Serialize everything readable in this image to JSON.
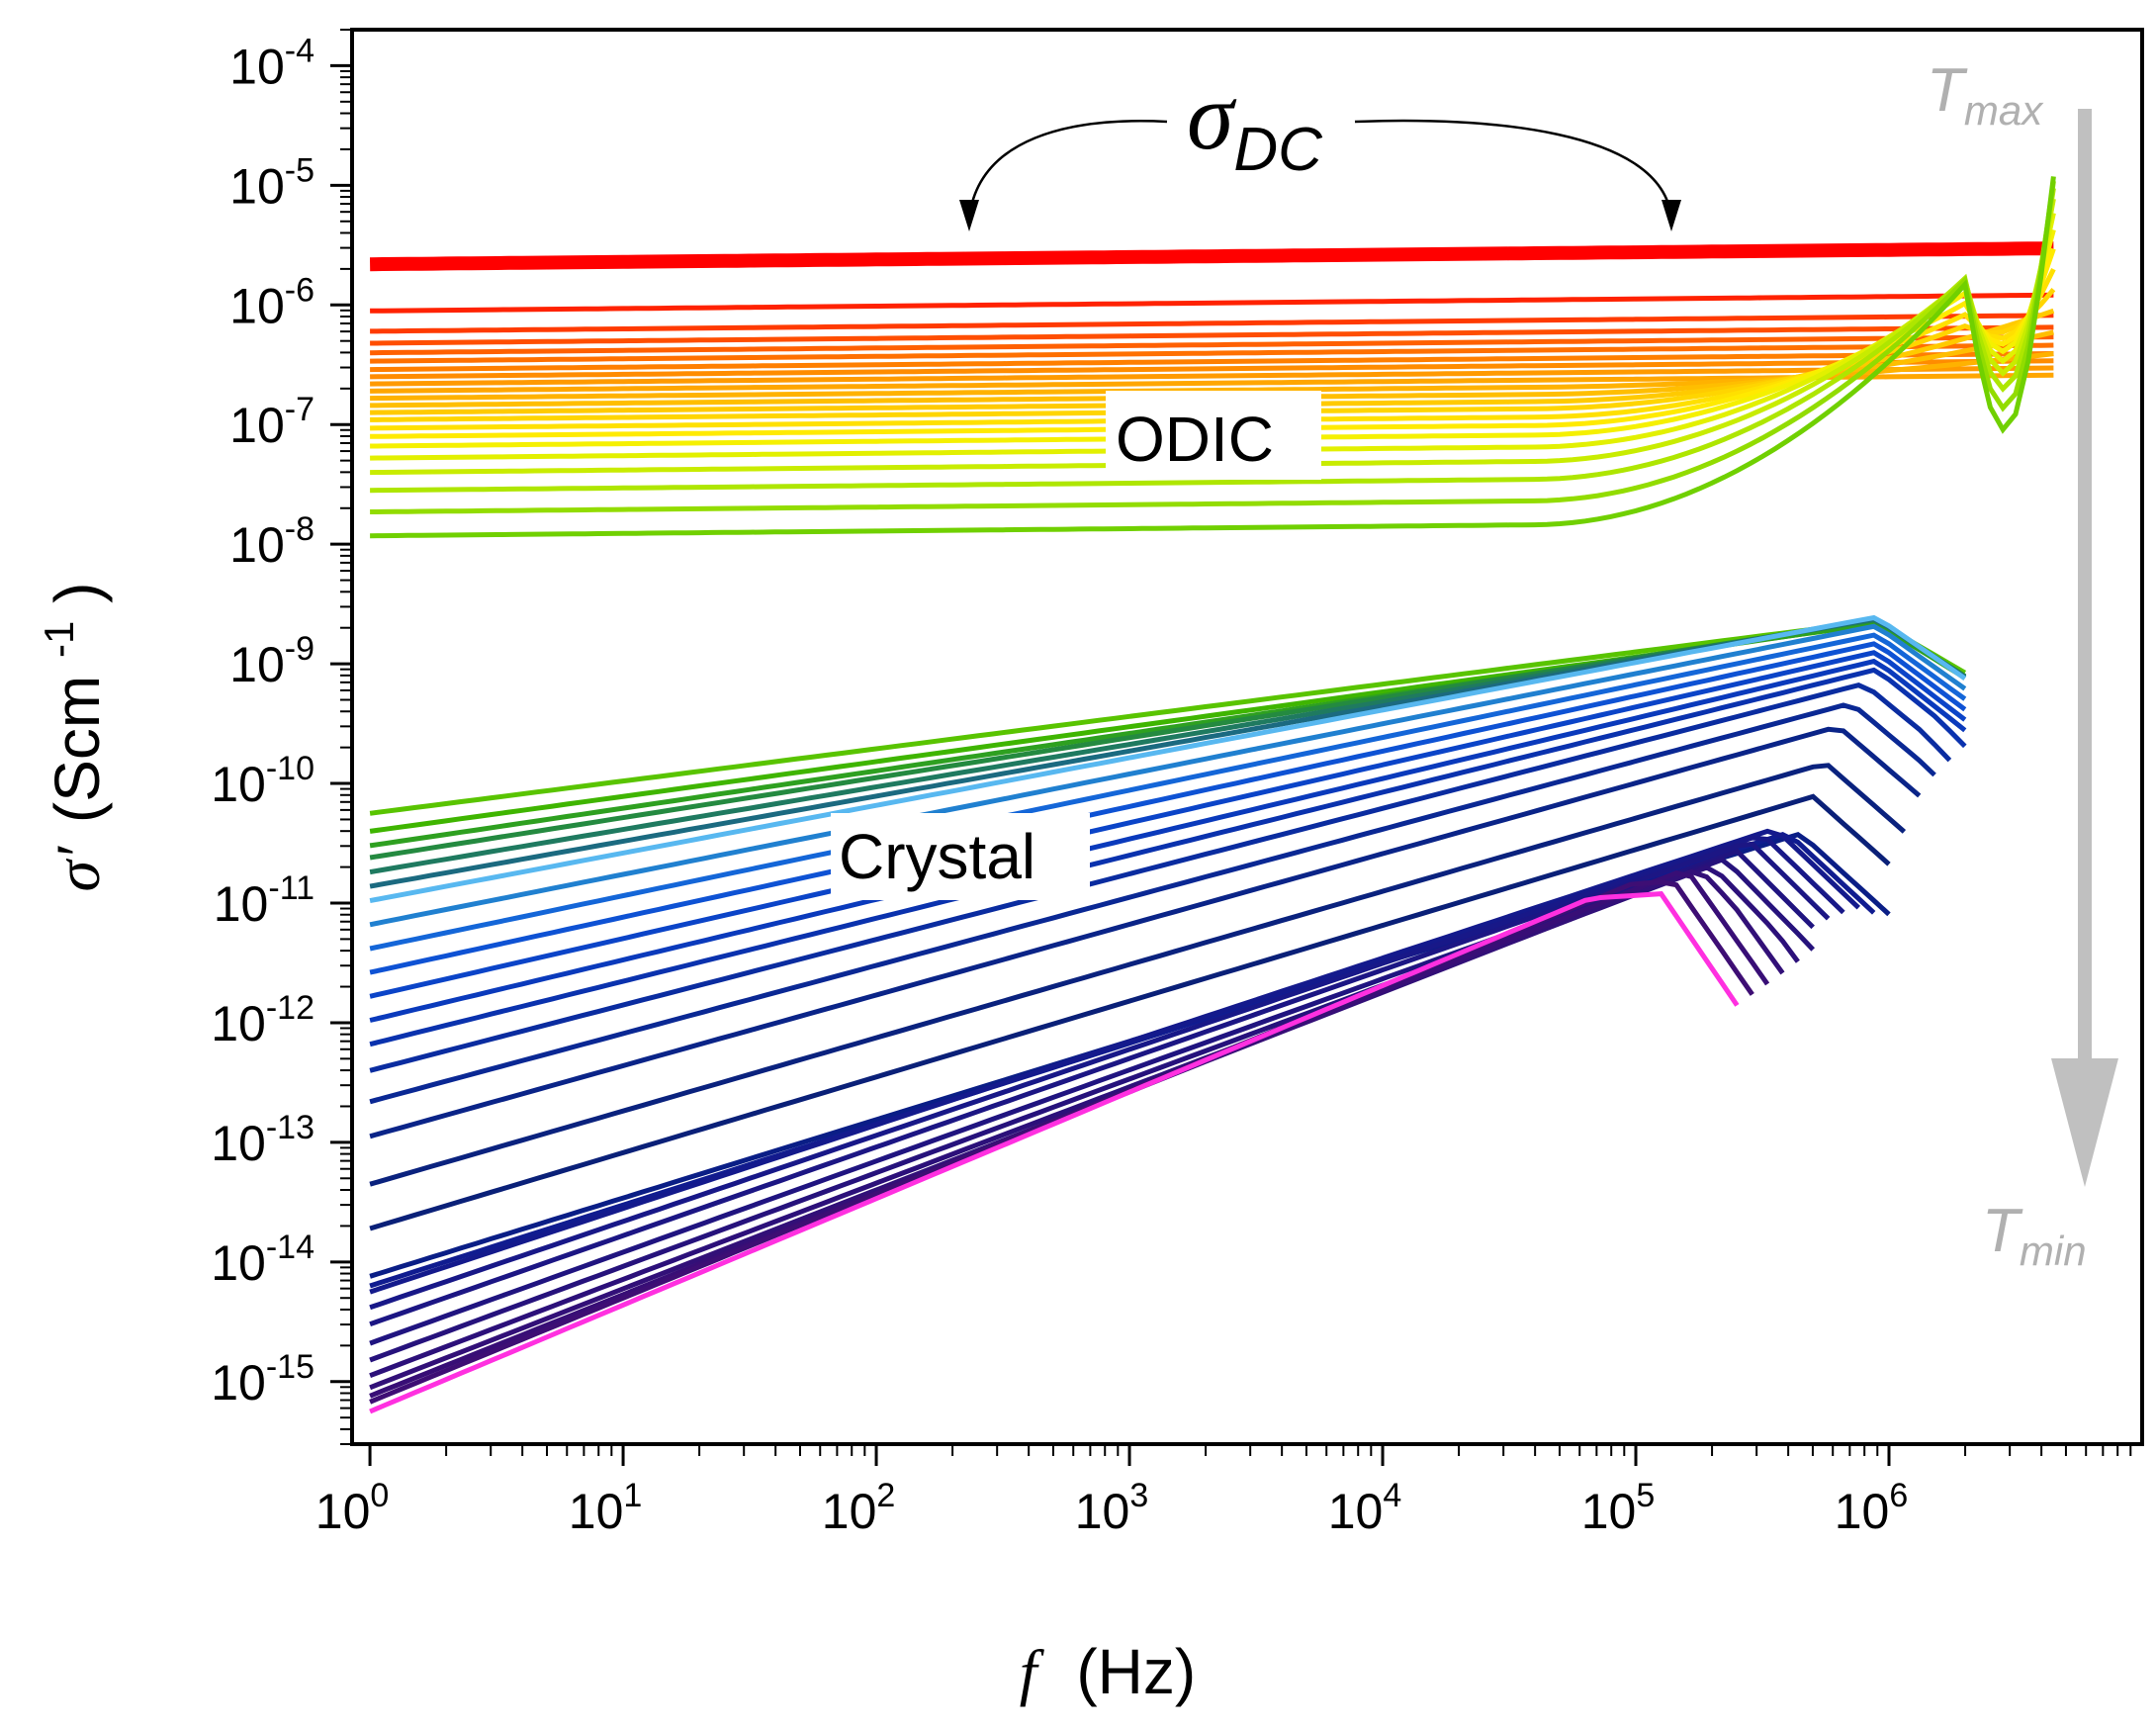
{
  "chart_data": {
    "type": "line",
    "xscale": "log",
    "yscale": "log",
    "xlim": [
      0.85,
      10000000
    ],
    "ylim": [
      3e-16,
      0.0002
    ],
    "x_ticks": [
      {
        "base": "10",
        "exp": "0"
      },
      {
        "base": "10",
        "exp": "1"
      },
      {
        "base": "10",
        "exp": "2"
      },
      {
        "base": "10",
        "exp": "3"
      },
      {
        "base": "10",
        "exp": "4"
      },
      {
        "base": "10",
        "exp": "5"
      },
      {
        "base": "10",
        "exp": "6"
      }
    ],
    "y_ticks": [
      {
        "base": "10",
        "exp": "-4"
      },
      {
        "base": "10",
        "exp": "-5"
      },
      {
        "base": "10",
        "exp": "-6"
      },
      {
        "base": "10",
        "exp": "-7"
      },
      {
        "base": "10",
        "exp": "-8"
      },
      {
        "base": "10",
        "exp": "-9"
      },
      {
        "base": "10",
        "exp": "-10"
      },
      {
        "base": "10",
        "exp": "-11"
      },
      {
        "base": "10",
        "exp": "-12"
      },
      {
        "base": "10",
        "exp": "-13"
      },
      {
        "base": "10",
        "exp": "-14"
      },
      {
        "base": "10",
        "exp": "-15"
      }
    ],
    "xlabel": {
      "symbol": "f",
      "unit": "(Hz)"
    },
    "ylabel": {
      "symbol": "σ′",
      "unit": "(Scm",
      "unit_exp": "-1",
      "unit_close": ")"
    },
    "annotations": {
      "sigma_dc": {
        "symbol": "σ",
        "sub": "DC",
        "arrow_targets_hz": [
          220,
          130000
        ]
      },
      "odic": "ODIC",
      "crystal": "Crystal",
      "t_max": {
        "text": "T",
        "sub": "max"
      },
      "t_min": {
        "text": "T",
        "sub": "min"
      }
    },
    "colors": {
      "t_arrow": "#c0c0c0",
      "frame": "#000000"
    },
    "odic_series": {
      "description_values": "log10 sigma' at 1 Hz; curves flat to ~1e5 Hz, rise near 1e6 Hz",
      "count": 22,
      "start_log_sigma": [
        -5.66,
        -6.05,
        -6.22,
        -6.32,
        -6.4,
        -6.47,
        -6.54,
        -6.6,
        -6.66,
        -6.72,
        -6.78,
        -6.84,
        -6.9,
        -6.96,
        -7.03,
        -7.1,
        -7.18,
        -7.28,
        -7.4,
        -7.55,
        -7.73,
        -7.93
      ],
      "high_freq_end_hz": 4500000,
      "colors": [
        "#ff0000",
        "#ff2200",
        "#ff3a00",
        "#ff4e00",
        "#ff6000",
        "#ff7000",
        "#ff7f00",
        "#ff8c00",
        "#ff9a00",
        "#ffa600",
        "#ffb200",
        "#ffbe00",
        "#ffca00",
        "#ffd500",
        "#ffe000",
        "#ffea00",
        "#f5f000",
        "#e2f000",
        "#c8ec00",
        "#aee600",
        "#92dc00",
        "#70d000"
      ]
    },
    "crystal_series": {
      "description_values": "log10 sigma' at 1 Hz; power-law rise with peaks near 1e5-1e6 Hz",
      "count": 30,
      "start_log_sigma": [
        -10.25,
        -10.4,
        -10.52,
        -10.62,
        -10.74,
        -10.86,
        -10.98,
        -11.18,
        -11.38,
        -11.58,
        -11.78,
        -11.98,
        -12.18,
        -12.4,
        -12.66,
        -12.95,
        -13.35,
        -13.72,
        -14.12,
        -14.2,
        -14.25,
        -14.38,
        -14.52,
        -14.68,
        -14.82,
        -14.95,
        -15.05,
        -15.12,
        -15.17,
        -15.25
      ],
      "colors": [
        "#59c400",
        "#3fb500",
        "#2ea020",
        "#248a40",
        "#1f7a60",
        "#1b6a80",
        "#58b8f0",
        "#2080d0",
        "#1466d8",
        "#0e52d4",
        "#0b44c8",
        "#0a3abc",
        "#0a32ae",
        "#0a2ca0",
        "#0a2894",
        "#0a2488",
        "#0a227e",
        "#0a2078",
        "#0a1e86",
        "#101c90",
        "#141a8c",
        "#181888",
        "#1c1684",
        "#201480",
        "#26127c",
        "#2c107a",
        "#321078",
        "#380e76",
        "#3e0e74",
        "#ff30e0"
      ]
    }
  }
}
